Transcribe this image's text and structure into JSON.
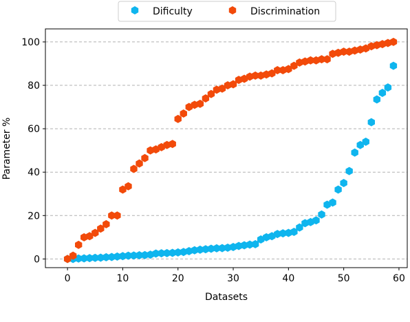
{
  "chart_data": {
    "type": "scatter",
    "xlabel": "Datasets",
    "ylabel": "Parameter %",
    "xlim": [
      -4,
      61.5
    ],
    "ylim": [
      -4,
      106
    ],
    "xticks": [
      0,
      10,
      20,
      30,
      40,
      50,
      60
    ],
    "yticks": [
      0,
      20,
      40,
      60,
      80,
      100
    ],
    "grid": "horizontal-dashed",
    "legend": "top-center-outside",
    "series": [
      {
        "name": "Dificulty",
        "color": "#0fb5ee",
        "x": [
          0,
          1,
          2,
          3,
          4,
          5,
          6,
          7,
          8,
          9,
          10,
          11,
          12,
          13,
          14,
          15,
          16,
          17,
          18,
          19,
          20,
          21,
          22,
          23,
          24,
          25,
          26,
          27,
          28,
          29,
          30,
          31,
          32,
          33,
          34,
          35,
          36,
          37,
          38,
          39,
          40,
          41,
          42,
          43,
          44,
          45,
          46,
          47,
          48,
          49,
          50,
          51,
          52,
          53,
          54,
          55,
          56,
          57,
          58,
          59
        ],
        "y": [
          0,
          0,
          0.2,
          0.3,
          0.4,
          0.5,
          0.6,
          0.8,
          0.9,
          1.1,
          1.3,
          1.5,
          1.6,
          1.7,
          1.8,
          2.0,
          2.5,
          2.6,
          2.7,
          2.8,
          3.0,
          3.2,
          3.6,
          4.0,
          4.3,
          4.5,
          4.7,
          4.9,
          5.0,
          5.2,
          5.5,
          6.0,
          6.3,
          6.6,
          6.8,
          9.0,
          10.0,
          10.5,
          11.5,
          11.8,
          12.0,
          12.5,
          14.5,
          16.5,
          17.0,
          17.8,
          20.5,
          25.0,
          26.0,
          32.0,
          35.0,
          40.5,
          49.0,
          52.5,
          54.0,
          63.0,
          73.5,
          76.5,
          79.0,
          89.0
        ]
      },
      {
        "name": "Discrimination",
        "color": "#f24a0a",
        "x": [
          0,
          1,
          2,
          3,
          4,
          5,
          6,
          7,
          8,
          9,
          10,
          11,
          12,
          13,
          14,
          15,
          16,
          17,
          18,
          19,
          20,
          21,
          22,
          23,
          24,
          25,
          26,
          27,
          28,
          29,
          30,
          31,
          32,
          33,
          34,
          35,
          36,
          37,
          38,
          39,
          40,
          41,
          42,
          43,
          44,
          45,
          46,
          47,
          48,
          49,
          50,
          51,
          52,
          53,
          54,
          55,
          56,
          57,
          58,
          59
        ],
        "y": [
          0,
          1.5,
          6.5,
          10,
          10.5,
          12,
          14,
          16,
          20,
          20,
          32,
          33.5,
          41.5,
          44,
          46.5,
          50,
          50.5,
          51.5,
          52.5,
          53,
          64.5,
          67,
          70,
          71,
          71.5,
          74,
          76,
          78,
          78.5,
          80,
          80.5,
          82.5,
          83,
          84,
          84.5,
          84.5,
          85,
          85.5,
          87,
          87,
          87.5,
          89,
          90.5,
          91,
          91.5,
          91.5,
          92,
          92,
          94.5,
          95,
          95.5,
          95.5,
          96,
          96.5,
          97,
          98,
          98.5,
          99,
          99.5,
          100
        ]
      }
    ]
  }
}
